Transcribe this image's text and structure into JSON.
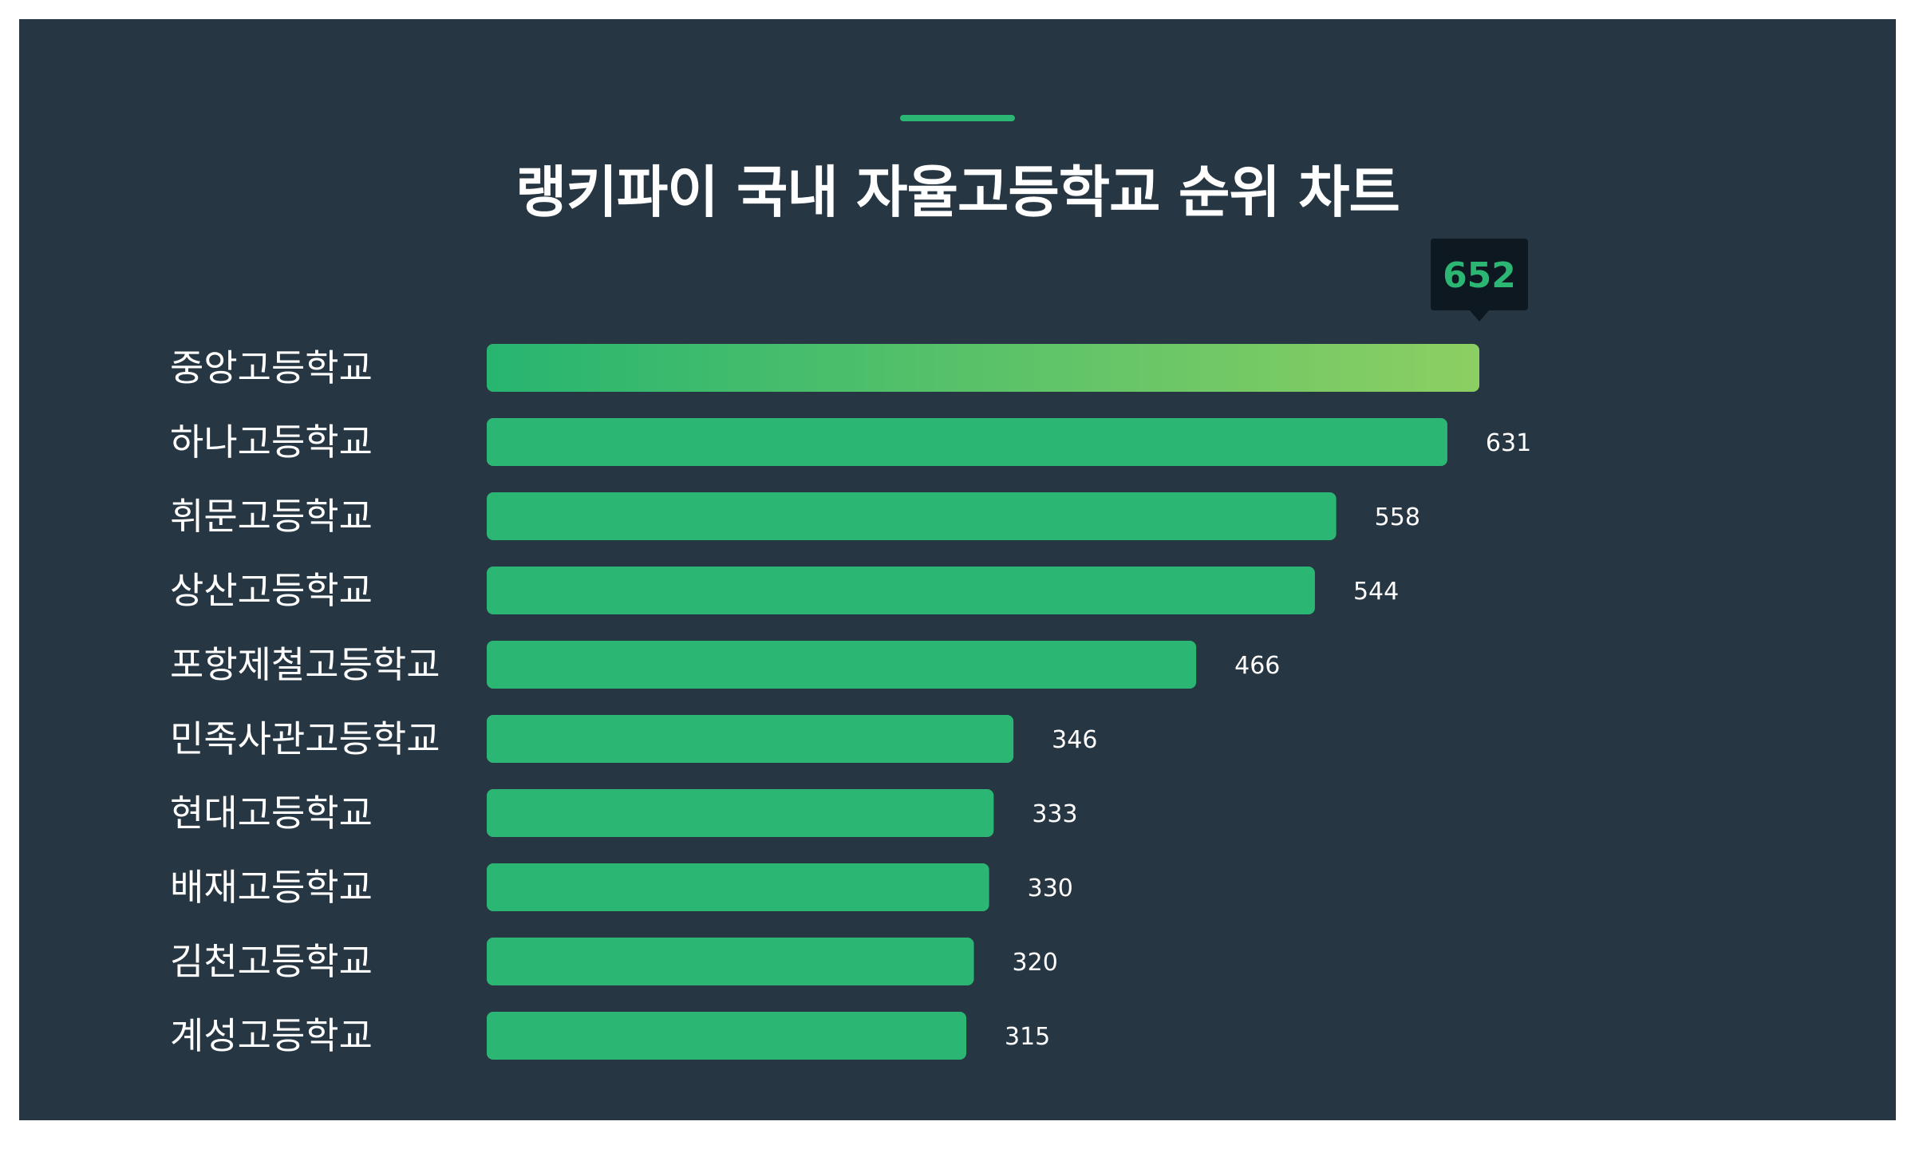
{
  "title": "랭키파이 국내 자율고등학교 순위 차트",
  "colors": {
    "background": "#263642",
    "bar": "#2bb673",
    "bar_top_gradient_start": "#27b570",
    "bar_top_gradient_end": "#8ccf62",
    "accent": "#2bb673",
    "tooltip_bg": "#0e1820",
    "text": "#ffffff"
  },
  "chart_data": {
    "type": "bar",
    "orientation": "horizontal",
    "title": "랭키파이 국내 자율고등학교 순위 차트",
    "categories": [
      "중앙고등학교",
      "하나고등학교",
      "휘문고등학교",
      "상산고등학교",
      "포항제철고등학교",
      "민족사관고등학교",
      "현대고등학교",
      "배재고등학교",
      "김천고등학교",
      "계성고등학교"
    ],
    "values": [
      652,
      631,
      558,
      544,
      466,
      346,
      333,
      330,
      320,
      315
    ],
    "highlight": {
      "index": 0,
      "label": "652"
    },
    "xlim": [
      0,
      652
    ],
    "grid": false,
    "legend": "none"
  }
}
